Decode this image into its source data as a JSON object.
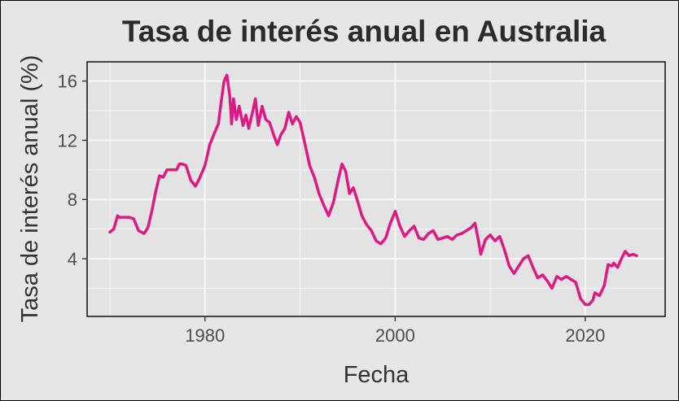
{
  "chart_data": {
    "type": "line",
    "title": "Tasa de interés anual en Australia",
    "xlabel": "Fecha",
    "ylabel": "Tasa de interés anual (%)",
    "xlim": [
      1967.6,
      2028.4
    ],
    "ylim": [
      0.1,
      17.3
    ],
    "x_ticks": [
      1980,
      2000,
      2020
    ],
    "x_tick_labels": [
      "1980",
      "2000",
      "2020"
    ],
    "y_ticks": [
      4,
      8,
      12,
      16
    ],
    "y_tick_labels": [
      "4",
      "8",
      "12",
      "16"
    ],
    "grid": true,
    "legend": "none",
    "colors": {
      "panel_background": "#e3e3e3",
      "page_background": "#e6e6e6",
      "grid": "#f7f7f7",
      "line": "#dd1a83"
    },
    "series": [
      {
        "x": [
          1970.0,
          1970.4,
          1970.8,
          1971.0,
          1971.5,
          1972.0,
          1972.5,
          1973.0,
          1973.3,
          1973.6,
          1974.0,
          1974.4,
          1974.8,
          1975.2,
          1975.6,
          1976.0,
          1976.5,
          1977.0,
          1977.3,
          1977.6,
          1978.0,
          1978.5,
          1979.0,
          1979.4,
          1979.8,
          1980.0,
          1980.5,
          1981.0,
          1981.4,
          1981.7,
          1982.0,
          1982.3,
          1982.6,
          1982.8,
          1983.0,
          1983.3,
          1983.6,
          1984.0,
          1984.3,
          1984.6,
          1985.0,
          1985.3,
          1985.6,
          1986.0,
          1986.4,
          1986.8,
          1987.2,
          1987.6,
          1988.0,
          1988.4,
          1988.8,
          1989.2,
          1989.6,
          1990.0,
          1990.5,
          1991.0,
          1991.5,
          1992.0,
          1992.5,
          1993.0,
          1993.5,
          1994.0,
          1994.4,
          1994.8,
          1995.2,
          1995.6,
          1996.0,
          1996.5,
          1997.0,
          1997.5,
          1998.0,
          1998.5,
          1999.0,
          1999.5,
          2000.0,
          2000.5,
          2001.0,
          2001.5,
          2002.0,
          2002.5,
          2003.0,
          2003.5,
          2004.0,
          2004.5,
          2005.0,
          2005.5,
          2006.0,
          2006.5,
          2007.0,
          2007.5,
          2008.0,
          2008.4,
          2008.8,
          2009.0,
          2009.5,
          2010.0,
          2010.5,
          2011.0,
          2011.5,
          2012.0,
          2012.5,
          2013.0,
          2013.5,
          2014.0,
          2014.5,
          2015.0,
          2015.5,
          2016.0,
          2016.5,
          2017.0,
          2017.5,
          2018.0,
          2018.5,
          2019.0,
          2019.5,
          2020.0,
          2020.4,
          2020.8,
          2021.0,
          2021.5,
          2022.0,
          2022.4,
          2022.8,
          2023.0,
          2023.4,
          2023.8,
          2024.2,
          2024.6,
          2025.0,
          2025.4
        ],
        "values": [
          5.8,
          6.0,
          6.9,
          6.8,
          6.8,
          6.8,
          6.7,
          5.9,
          5.8,
          5.7,
          6.1,
          7.2,
          8.5,
          9.6,
          9.5,
          10.0,
          10.0,
          10.0,
          10.4,
          10.4,
          10.3,
          9.3,
          8.9,
          9.4,
          10.0,
          10.3,
          11.7,
          12.5,
          13.1,
          14.6,
          16.0,
          16.4,
          15.0,
          13.1,
          14.8,
          13.4,
          14.3,
          13.0,
          13.7,
          12.8,
          13.9,
          14.8,
          13.0,
          14.3,
          13.4,
          13.2,
          12.4,
          11.7,
          12.4,
          12.8,
          13.9,
          13.1,
          13.6,
          13.2,
          11.8,
          10.3,
          9.5,
          8.4,
          7.6,
          6.9,
          7.8,
          9.3,
          10.4,
          9.9,
          8.4,
          8.8,
          8.0,
          6.9,
          6.3,
          5.9,
          5.2,
          5.0,
          5.4,
          6.4,
          7.2,
          6.2,
          5.5,
          5.9,
          6.2,
          5.4,
          5.3,
          5.7,
          5.9,
          5.3,
          5.4,
          5.5,
          5.3,
          5.6,
          5.7,
          5.9,
          6.1,
          6.4,
          5.1,
          4.3,
          5.3,
          5.6,
          5.2,
          5.5,
          4.6,
          3.5,
          3.0,
          3.5,
          4.0,
          4.2,
          3.4,
          2.7,
          2.9,
          2.5,
          2.0,
          2.8,
          2.6,
          2.8,
          2.6,
          2.4,
          1.3,
          0.9,
          0.9,
          1.2,
          1.7,
          1.5,
          2.2,
          3.6,
          3.5,
          3.7,
          3.4,
          4.0,
          4.5,
          4.2,
          4.3,
          4.2
        ]
      }
    ]
  }
}
